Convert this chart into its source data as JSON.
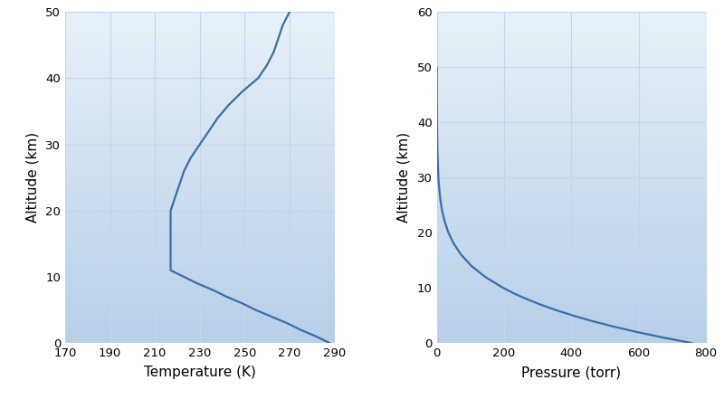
{
  "temp_altitude": [
    0,
    1,
    2,
    3,
    4,
    5,
    6,
    7,
    8,
    9,
    10,
    11,
    11.1,
    12,
    14,
    16,
    18,
    20,
    22,
    24,
    26,
    28,
    29,
    30,
    32,
    34,
    36,
    38,
    40,
    42,
    44,
    46,
    48,
    50
  ],
  "temp_values": [
    288,
    282,
    275,
    269,
    262,
    255,
    249,
    242,
    236,
    229,
    223,
    217,
    217,
    217,
    217,
    217,
    217,
    217,
    219,
    221,
    223,
    226,
    228,
    230,
    234,
    238,
    243,
    249,
    256,
    260,
    263,
    265,
    267,
    270
  ],
  "pres_altitude": [
    0,
    1,
    2,
    3,
    4,
    5,
    6,
    7,
    8,
    9,
    10,
    12,
    14,
    16,
    18,
    20,
    22,
    24,
    26,
    28,
    30,
    35,
    40,
    45,
    50
  ],
  "pres_values": [
    760,
    674,
    596,
    526,
    462,
    405,
    354,
    308,
    267,
    230,
    198,
    144,
    103,
    73,
    51,
    35,
    24,
    16,
    11,
    7.5,
    5,
    2.2,
    0.96,
    0.41,
    0.18
  ],
  "temp_xlim": [
    170,
    290
  ],
  "temp_ylim": [
    0,
    50
  ],
  "pres_xlim": [
    0,
    800
  ],
  "pres_ylim": [
    0,
    60
  ],
  "temp_xticks": [
    170,
    190,
    210,
    230,
    250,
    270,
    290
  ],
  "pres_xticks": [
    0,
    200,
    400,
    600,
    800
  ],
  "temp_yticks": [
    0,
    10,
    20,
    30,
    40,
    50
  ],
  "pres_yticks": [
    0,
    10,
    20,
    30,
    40,
    50,
    60
  ],
  "xlabel_temp": "Temperature (K)",
  "xlabel_pres": "Pressure (torr)",
  "ylabel": "Altitude (km)",
  "line_color": "#3a6ea8",
  "bg_color_light": "#e8f1f9",
  "bg_color_dark": "#b8cfe8",
  "grid_color": "#c5d5e8",
  "label_fontsize": 11,
  "tick_fontsize": 9.5,
  "line_width": 1.6
}
